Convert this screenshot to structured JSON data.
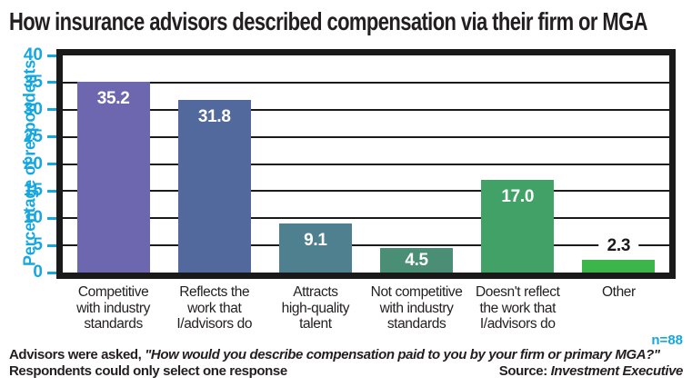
{
  "title": "How insurance advisors described compensation via their firm or MGA",
  "colors": {
    "accent_cyan": "#16A7E0",
    "title_black": "#231F20",
    "grid_black": "#1a1a1a",
    "bar_value_white": "#ffffff"
  },
  "chart_data": {
    "type": "bar",
    "title": "How insurance advisors described compensation via their firm or MGA",
    "ylabel": "Percentage of respondents",
    "xlabel": "",
    "ylim": [
      0,
      40
    ],
    "yticks": [
      0,
      5,
      10,
      15,
      20,
      25,
      30,
      35,
      40
    ],
    "grid": true,
    "legend": false,
    "categories": [
      "Competitive with industry standards",
      "Reflects the work that I/advisors do",
      "Attracts high-quality talent",
      "Not competitive with industry standards",
      "Doesn't reflect the work that I/advisors do",
      "Other"
    ],
    "category_lines": [
      [
        "Competitive",
        "with industry",
        "standards"
      ],
      [
        "Reflects the",
        "work that",
        "I/advisors do"
      ],
      [
        "Attracts",
        "high-quality",
        "talent"
      ],
      [
        "Not competitive",
        "with industry",
        "standards"
      ],
      [
        "Doesn't reflect",
        "the work that",
        "I/advisors do"
      ],
      [
        "Other"
      ]
    ],
    "values": [
      35.2,
      31.8,
      9.1,
      4.5,
      17.0,
      2.3
    ],
    "value_labels": [
      "35.2",
      "31.8",
      "9.1",
      "4.5",
      "17.0",
      "2.3"
    ],
    "bar_colors": [
      "#6C67AE",
      "#52699E",
      "#4F8090",
      "#4B8E76",
      "#41A167",
      "#3CB54A"
    ],
    "value_label_positions": [
      "inside",
      "inside",
      "inside",
      "inside",
      "inside",
      "outside"
    ]
  },
  "footnote": {
    "line1_prefix": "Advisors were asked, ",
    "line1_quote": "\"How would you describe compensation paid to you by your firm or primary MGA?\"",
    "line2": "Respondents could only select one response",
    "n_label": "n=88",
    "source_label": "Source:",
    "source_name": " Investment Executive"
  }
}
